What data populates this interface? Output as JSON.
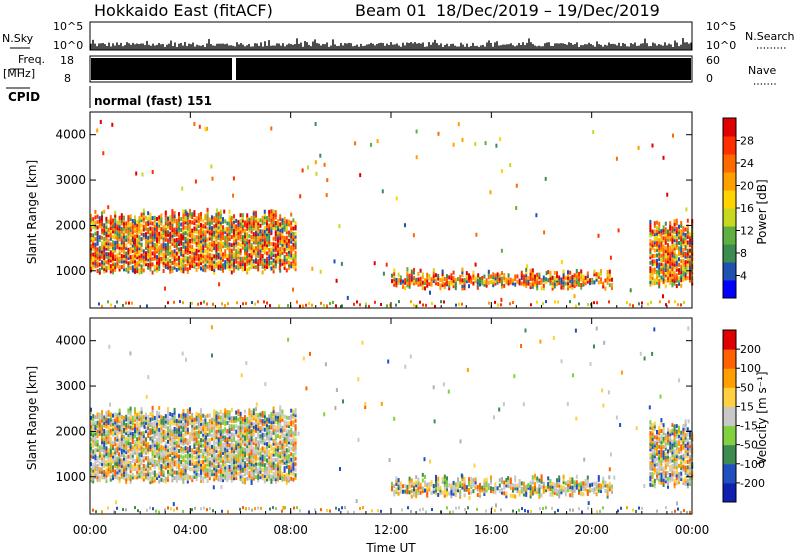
{
  "header": {
    "radar": "Hokkaido East (fitACF)",
    "beam": "Beam 01",
    "dates": "18/Dec/2019 – 19/Dec/2019"
  },
  "strip": {
    "nsky_label": "N.Sky",
    "nsky_ticks": [
      "10^5",
      "10^0"
    ],
    "nsearch_label": "N.Search",
    "nsearch_ticks": [
      "10^5",
      "10^0"
    ],
    "freq_label": "Freq.",
    "freq_unit": "[MHz]",
    "freq_ticks": [
      "18",
      "8"
    ],
    "nave_label": "Nave",
    "nave_ticks": [
      "60",
      "0"
    ],
    "cpid_label": "CPID",
    "cpid_value": "normal (fast) 151"
  },
  "chart_data": [
    {
      "type": "heatmap",
      "name": "power",
      "ylabel": "Slant Range [km]",
      "y_ticks": [
        "4000",
        "3000",
        "2000",
        "1000"
      ],
      "ylim": [
        180,
        4500
      ],
      "colorbar_label": "Power [dB]",
      "colorbar_ticks": [
        "28",
        "24",
        "20",
        "16",
        "12",
        "8",
        "4"
      ],
      "colorbar_colors": [
        "#0000ff",
        "#2050b0",
        "#3c8c50",
        "#5fb040",
        "#c8d820",
        "#ffd400",
        "#ffa000",
        "#ff6a00",
        "#ff3000",
        "#e00000"
      ],
      "regions": [
        {
          "t": [
            0.0,
            8.2
          ],
          "r": [
            1000,
            2400
          ],
          "level": "high"
        },
        {
          "t": [
            12.0,
            20.8
          ],
          "r": [
            650,
            1100
          ],
          "level": "medium"
        },
        {
          "t": [
            22.3,
            24.0
          ],
          "r": [
            700,
            2200
          ],
          "level": "high"
        }
      ]
    },
    {
      "type": "heatmap",
      "name": "velocity",
      "ylabel": "Slant Range [km]",
      "y_ticks": [
        "4000",
        "3000",
        "2000",
        "1000"
      ],
      "ylim": [
        180,
        4500
      ],
      "colorbar_label": "Velocity [m s⁻¹]",
      "colorbar_ticks": [
        "200",
        "100",
        "50",
        "15",
        "-15",
        "-50",
        "-100",
        "-200"
      ],
      "colorbar_colors": [
        "#1020b0",
        "#2050c0",
        "#3c8c50",
        "#80d040",
        "#c8c8c8",
        "#ffd040",
        "#ffa000",
        "#ff6000",
        "#e00000"
      ],
      "regions": [
        {
          "t": [
            0.0,
            8.2
          ],
          "r": [
            900,
            2600
          ],
          "level": "near-zero"
        },
        {
          "t": [
            12.0,
            20.8
          ],
          "r": [
            600,
            1100
          ],
          "level": "negative"
        },
        {
          "t": [
            22.3,
            24.0
          ],
          "r": [
            800,
            2300
          ],
          "level": "near-zero"
        }
      ]
    }
  ],
  "xaxis": {
    "label": "Time UT",
    "ticks": [
      "00:00",
      "04:00",
      "08:00",
      "12:00",
      "16:00",
      "20:00",
      "00:00"
    ]
  }
}
